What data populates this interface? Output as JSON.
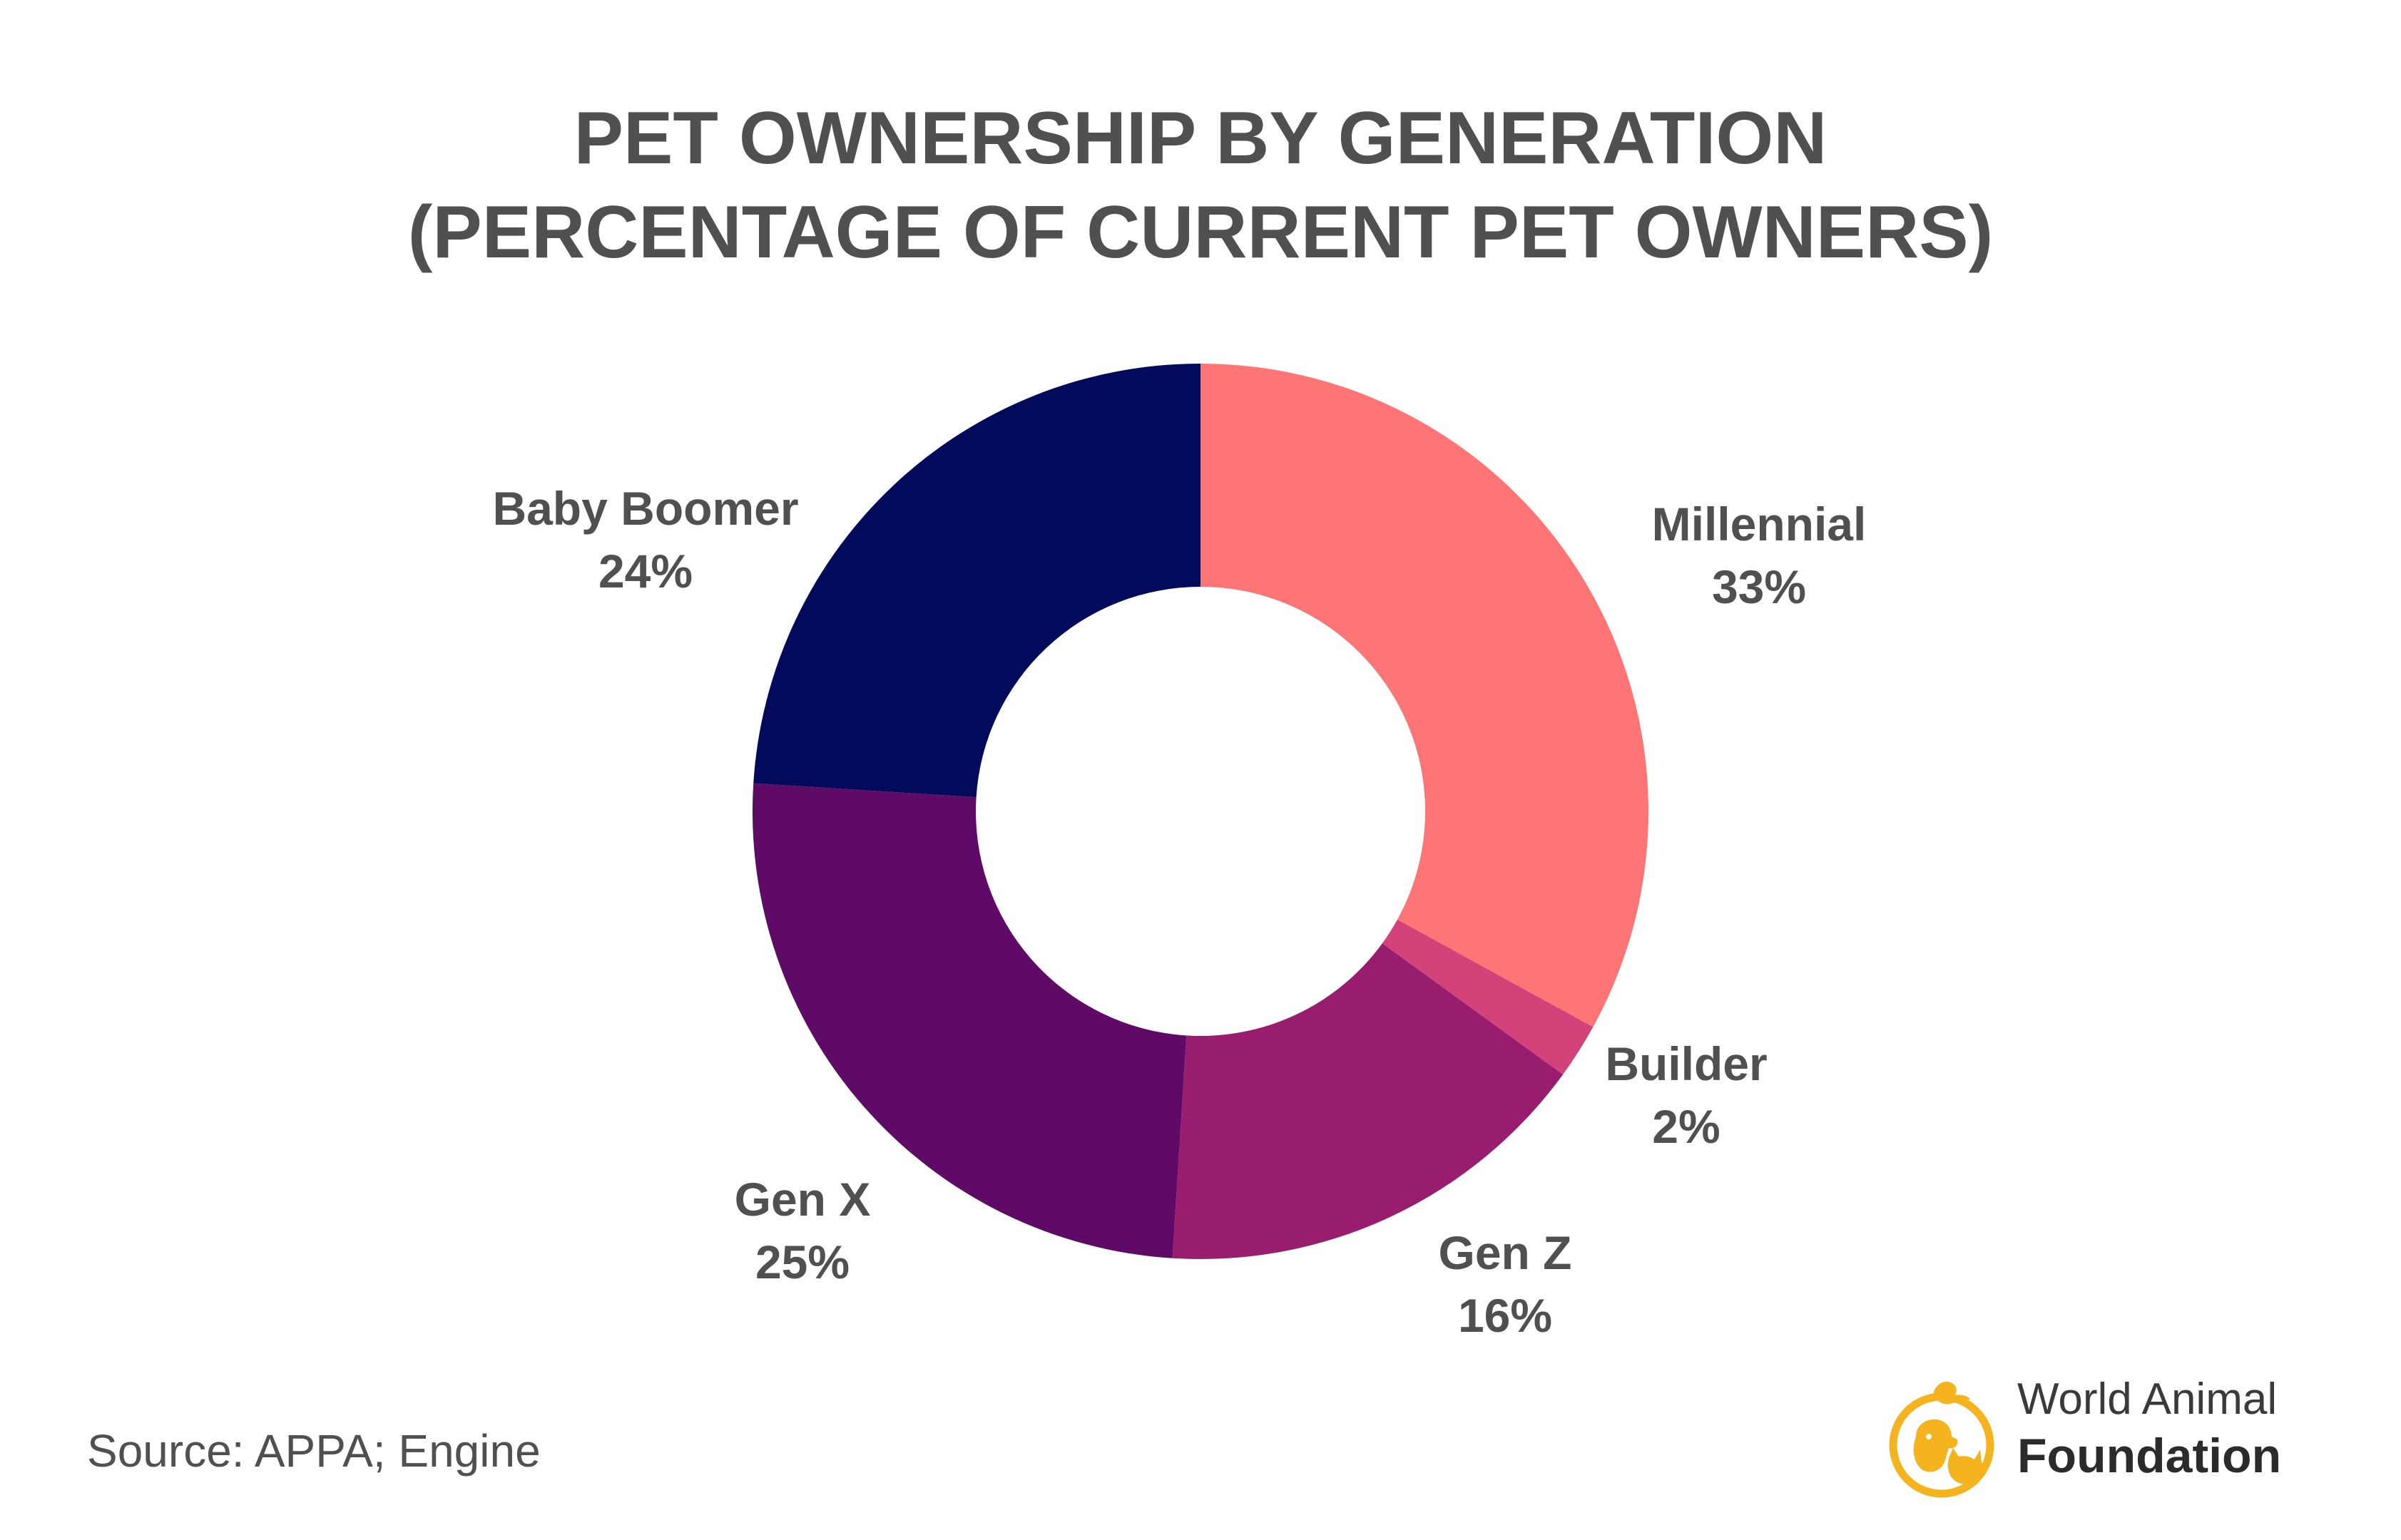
{
  "title": {
    "line1": "PET OWNERSHIP BY GENERATION",
    "line2": "(PERCENTAGE OF CURRENT PET OWNERS)"
  },
  "source": "Source: APPA; Engine",
  "logo": {
    "line1": "World Animal",
    "line2": "Foundation",
    "icon": "pet-silhouettes-circle-icon",
    "color": "#F5B31D"
  },
  "chart_data": {
    "type": "pie",
    "donut": true,
    "start": "top, clockwise",
    "slices": [
      {
        "name": "Millennial",
        "value": 33,
        "label": "33%",
        "color": "#FF7575"
      },
      {
        "name": "Builder",
        "value": 2,
        "label": "2%",
        "color": "#D3437A"
      },
      {
        "name": "Gen Z",
        "value": 16,
        "label": "16%",
        "color": "#991D6E"
      },
      {
        "name": "Gen X",
        "value": 25,
        "label": "25%",
        "color": "#5F0A66"
      },
      {
        "name": "Baby Boomer",
        "value": 24,
        "label": "24%",
        "color": "#020A5C"
      }
    ]
  }
}
